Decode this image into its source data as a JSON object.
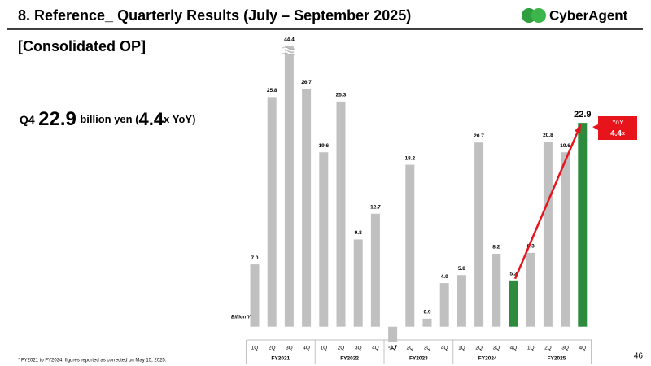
{
  "slide": {
    "title": "8.  Reference_ Quarterly Results (July – September 2025)",
    "logo": "CyberAgent",
    "subtitle": "[Consolidated OP]",
    "headline": {
      "prefix": "Q4",
      "value": "22.9",
      "unit": "billion yen (",
      "ratio": "4.4",
      "suffix": "x YoY)"
    },
    "footnote": "* FY2021 to FY2024: figures reported as corrected on May 15, 2025.",
    "page": "46"
  },
  "chart_data": {
    "type": "bar",
    "y_label": "Billion Yen",
    "categories": [
      "1Q",
      "2Q",
      "3Q",
      "4Q",
      "1Q",
      "2Q",
      "3Q",
      "4Q",
      "1Q",
      "2Q",
      "3Q",
      "4Q",
      "1Q",
      "2Q",
      "3Q",
      "4Q",
      "1Q",
      "2Q",
      "3Q",
      "4Q"
    ],
    "groups": [
      "FY2021",
      "FY2022",
      "FY2023",
      "FY2024",
      "FY2025"
    ],
    "values": [
      7.0,
      25.8,
      44.4,
      26.7,
      19.6,
      25.3,
      9.8,
      12.7,
      -1.7,
      18.2,
      0.9,
      4.9,
      5.8,
      20.7,
      8.2,
      5.2,
      8.3,
      20.8,
      19.6,
      22.9
    ],
    "value_labels": [
      "7.0",
      "25.8",
      "44.4",
      "26.7",
      "19.6",
      "25.3",
      "9.8",
      "12.7",
      "-1.7",
      "18.2",
      "0.9",
      "4.9",
      "5.8",
      "20.7",
      "8.2",
      "5.2",
      "8.3",
      "20.8",
      "19.6",
      "22.9"
    ],
    "colors": [
      "#c0c0c0",
      "#c0c0c0",
      "#c0c0c0",
      "#c0c0c0",
      "#c0c0c0",
      "#c0c0c0",
      "#c0c0c0",
      "#c0c0c0",
      "#c0c0c0",
      "#c0c0c0",
      "#c0c0c0",
      "#c0c0c0",
      "#c0c0c0",
      "#c0c0c0",
      "#c0c0c0",
      "#2e8b3e",
      "#c0c0c0",
      "#c0c0c0",
      "#c0c0c0",
      "#2e8b3e"
    ],
    "ylim": [
      -3.5,
      31.5
    ],
    "annotation": {
      "label": "YoY",
      "value": "4.4",
      "unit": "x",
      "color": "#e8141c"
    }
  }
}
